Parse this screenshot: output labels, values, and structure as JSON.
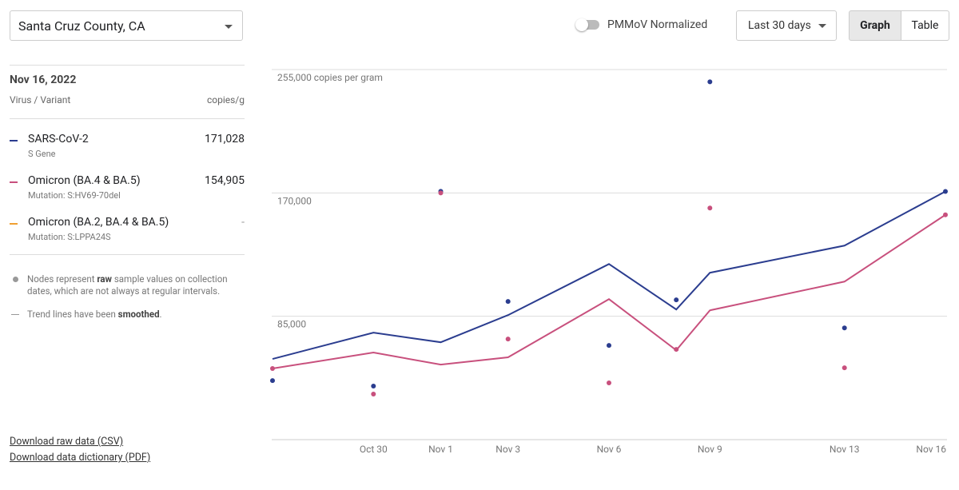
{
  "location": "Santa Cruz County, CA",
  "toggle_label": "PMMoV Normalized",
  "range_button": "Last 30 days",
  "view_tabs": [
    "Graph",
    "Table"
  ],
  "panel": {
    "date": "Nov 16, 2022",
    "column_left": "Virus / Variant",
    "column_right": "copies/g",
    "note_nodes": [
      "Nodes represent ",
      "raw",
      " sample values on collection dates, which are not always at regular intervals."
    ],
    "note_trend": [
      "Trend lines have been ",
      "smoothed",
      "."
    ],
    "links": [
      "Download raw data (CSV)",
      "Download data dictionary (PDF)"
    ]
  },
  "chart_data": {
    "type": "line",
    "x": [
      "Oct 27",
      "Oct 30",
      "Nov 1",
      "Nov 3",
      "Nov 6",
      "Nov 8",
      "Nov 9",
      "Nov 13",
      "Nov 16"
    ],
    "xlim": [
      "Oct 27",
      "Nov 16"
    ],
    "xticks": [
      "Oct 30",
      "Nov 1",
      "Nov 3",
      "Nov 6",
      "Nov 9",
      "Nov 13",
      "Nov 16"
    ],
    "ylim": [
      0,
      255000
    ],
    "yticks": [
      {
        "value": 85000,
        "label": "85,000"
      },
      {
        "value": 170000,
        "label": "170,000"
      },
      {
        "value": 255000,
        "label": "255,000 copies per gram"
      }
    ],
    "grid": true,
    "series": [
      {
        "name": "SARS-CoV-2",
        "detail": "S Gene",
        "latest": "171,028",
        "color": "#2b3d8f",
        "values": [
          55600,
          73700,
          67100,
          85800,
          121000,
          89700,
          115000,
          133700,
          171028
        ],
        "raw_values": [
          40700,
          36900,
          171100,
          95200,
          64900,
          96300,
          246500,
          77000,
          171028
        ]
      },
      {
        "name": "Omicron (BA.4 & BA.5)",
        "detail": "Mutation: S:HV69-70del",
        "latest": "154,905",
        "color": "#c8507d",
        "values": [
          49000,
          60000,
          51700,
          56700,
          96800,
          61600,
          89100,
          108900,
          154905
        ],
        "raw_values": [
          49000,
          31400,
          170000,
          69300,
          39100,
          62200,
          159600,
          49500,
          154905
        ]
      },
      {
        "name": "Omicron (BA.2, BA.4 & BA.5)",
        "detail": "Mutation: S:LPPA24S",
        "latest": "-",
        "color": "#f0a032"
      }
    ]
  }
}
